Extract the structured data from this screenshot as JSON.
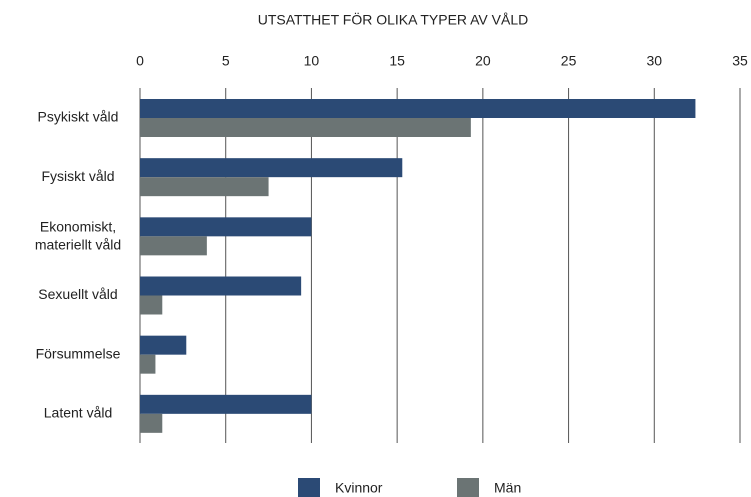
{
  "chart_data": {
    "type": "hbar",
    "title": "UTSATTHET FÖR OLIKA TYPER AV VÅLD",
    "categories": [
      "Psykiskt våld",
      "Fysiskt våld",
      "Ekonomiskt,\nmateriellt våld",
      "Sexuellt våld",
      "Försummelse",
      "Latent våld"
    ],
    "series": [
      {
        "name": "Kvinnor",
        "color": "#2b4a75",
        "values": [
          32.4,
          15.3,
          10.0,
          9.4,
          2.7,
          10.0
        ]
      },
      {
        "name": "Män",
        "color": "#6b7474",
        "values": [
          19.3,
          7.5,
          3.9,
          1.3,
          0.9,
          1.3
        ]
      }
    ],
    "xlim": [
      0,
      35
    ],
    "xticks": [
      0,
      5,
      10,
      15,
      20,
      25,
      30,
      35
    ],
    "grid": true,
    "legend": "bottom"
  }
}
